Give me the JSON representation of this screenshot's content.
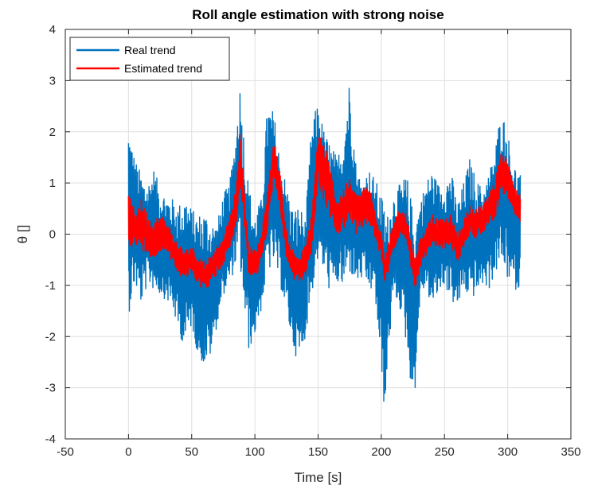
{
  "chart_data": {
    "type": "line",
    "title": "Roll angle estimation with strong noise",
    "xlabel": "Time [s]",
    "ylabel": "θ []",
    "xlim": [
      -50,
      350
    ],
    "ylim": [
      -4,
      4
    ],
    "x_ticks": [
      -50,
      0,
      50,
      100,
      150,
      200,
      250,
      300,
      350
    ],
    "y_ticks": [
      -4,
      -3,
      -2,
      -1,
      0,
      1,
      2,
      3,
      4
    ],
    "x_tick_labels": [
      "-50",
      "0",
      "50",
      "100",
      "150",
      "200",
      "250",
      "300",
      "350"
    ],
    "y_tick_labels": [
      "-4",
      "-3",
      "-2",
      "-1",
      "0",
      "1",
      "2",
      "3",
      "4"
    ],
    "grid": true,
    "legend_position": "top-left",
    "series": [
      {
        "name": "Real trend",
        "color": "#0072BD",
        "x": [
          0,
          5,
          10,
          15,
          20,
          25,
          30,
          35,
          40,
          45,
          50,
          55,
          60,
          65,
          70,
          75,
          80,
          85,
          88,
          90,
          95,
          100,
          105,
          110,
          115,
          120,
          125,
          130,
          135,
          140,
          145,
          150,
          155,
          160,
          165,
          170,
          175,
          180,
          185,
          190,
          195,
          200,
          203,
          205,
          210,
          215,
          220,
          225,
          227,
          230,
          235,
          240,
          245,
          250,
          255,
          260,
          265,
          270,
          275,
          280,
          285,
          290,
          295,
          300,
          305,
          310
        ],
        "y_upper": [
          2.2,
          1.5,
          1.2,
          1.0,
          1.3,
          0.9,
          0.8,
          0.7,
          0.6,
          0.8,
          0.5,
          0.4,
          0.5,
          0.3,
          0.2,
          0.8,
          1.0,
          2.0,
          3.0,
          2.4,
          1.0,
          0.4,
          0.7,
          2.6,
          2.4,
          1.5,
          1.0,
          0.5,
          0.6,
          0.3,
          2.2,
          2.6,
          2.0,
          1.8,
          1.5,
          2.0,
          3.1,
          1.4,
          1.0,
          1.3,
          1.1,
          0.8,
          0.6,
          0.4,
          0.8,
          1.0,
          1.2,
          0.5,
          0.3,
          0.6,
          1.0,
          1.3,
          1.0,
          1.0,
          1.3,
          0.6,
          1.0,
          1.5,
          1.1,
          0.9,
          1.2,
          1.7,
          2.5,
          2.0,
          1.4,
          1.2
        ],
        "y_lower": [
          -1.6,
          -1.0,
          -1.4,
          -1.0,
          -1.1,
          -1.2,
          -1.3,
          -1.5,
          -2.0,
          -2.2,
          -1.8,
          -2.4,
          -2.6,
          -2.4,
          -1.8,
          -1.2,
          -1.0,
          -0.6,
          -0.5,
          -1.2,
          -2.3,
          -2.0,
          -1.5,
          -0.8,
          -0.6,
          -1.0,
          -1.6,
          -2.2,
          -2.6,
          -2.0,
          -1.2,
          -0.5,
          -0.8,
          -1.2,
          -1.0,
          -1.1,
          -0.8,
          -1.0,
          -0.9,
          -1.1,
          -1.2,
          -2.8,
          -3.6,
          -2.5,
          -1.2,
          -1.5,
          -2.2,
          -3.3,
          -3.0,
          -1.5,
          -1.0,
          -1.5,
          -1.2,
          -1.0,
          -1.3,
          -1.5,
          -1.1,
          -1.3,
          -1.2,
          -1.0,
          -1.1,
          -0.8,
          -0.6,
          -0.9,
          -1.1,
          -1.1
        ]
      },
      {
        "name": "Estimated trend",
        "color": "#FF0000",
        "x": [
          0,
          5,
          10,
          15,
          20,
          25,
          30,
          35,
          40,
          45,
          50,
          55,
          60,
          65,
          70,
          75,
          80,
          85,
          88,
          90,
          95,
          100,
          105,
          110,
          115,
          120,
          125,
          130,
          135,
          140,
          145,
          150,
          155,
          160,
          165,
          170,
          175,
          180,
          185,
          190,
          195,
          200,
          203,
          205,
          210,
          215,
          220,
          225,
          227,
          230,
          235,
          240,
          245,
          250,
          255,
          260,
          265,
          270,
          275,
          280,
          285,
          290,
          295,
          300,
          305,
          310
        ],
        "y": [
          0.3,
          0.1,
          0.2,
          0.0,
          -0.1,
          0.0,
          0.0,
          -0.3,
          -0.5,
          -0.6,
          -0.5,
          -0.7,
          -0.8,
          -0.7,
          -0.5,
          -0.3,
          0.0,
          0.5,
          1.4,
          1.0,
          -0.5,
          -0.6,
          -0.3,
          0.5,
          1.5,
          0.8,
          -0.2,
          -0.6,
          -0.7,
          -0.5,
          0.0,
          1.5,
          1.2,
          0.8,
          0.3,
          0.5,
          0.7,
          0.4,
          0.5,
          0.6,
          0.2,
          -0.2,
          -0.7,
          -0.5,
          0.0,
          0.2,
          0.1,
          -0.6,
          -0.8,
          -0.4,
          -0.2,
          0.1,
          0.0,
          0.0,
          0.1,
          -0.3,
          0.0,
          0.3,
          0.2,
          0.3,
          0.5,
          0.7,
          1.2,
          1.1,
          0.6,
          0.5
        ],
        "band": [
          0.5,
          0.4,
          0.5,
          0.4,
          0.4,
          0.4,
          0.3,
          0.3,
          0.3,
          0.3,
          0.3,
          0.3,
          0.3,
          0.3,
          0.3,
          0.3,
          0.3,
          0.4,
          0.6,
          0.4,
          0.3,
          0.3,
          0.3,
          0.4,
          0.4,
          0.4,
          0.3,
          0.3,
          0.3,
          0.3,
          0.4,
          0.6,
          0.6,
          0.5,
          0.4,
          0.4,
          0.4,
          0.4,
          0.4,
          0.4,
          0.3,
          0.3,
          0.3,
          0.3,
          0.3,
          0.3,
          0.3,
          0.3,
          0.3,
          0.3,
          0.3,
          0.3,
          0.3,
          0.3,
          0.3,
          0.3,
          0.3,
          0.3,
          0.3,
          0.3,
          0.3,
          0.4,
          0.4,
          0.4,
          0.3,
          0.3
        ]
      }
    ]
  }
}
